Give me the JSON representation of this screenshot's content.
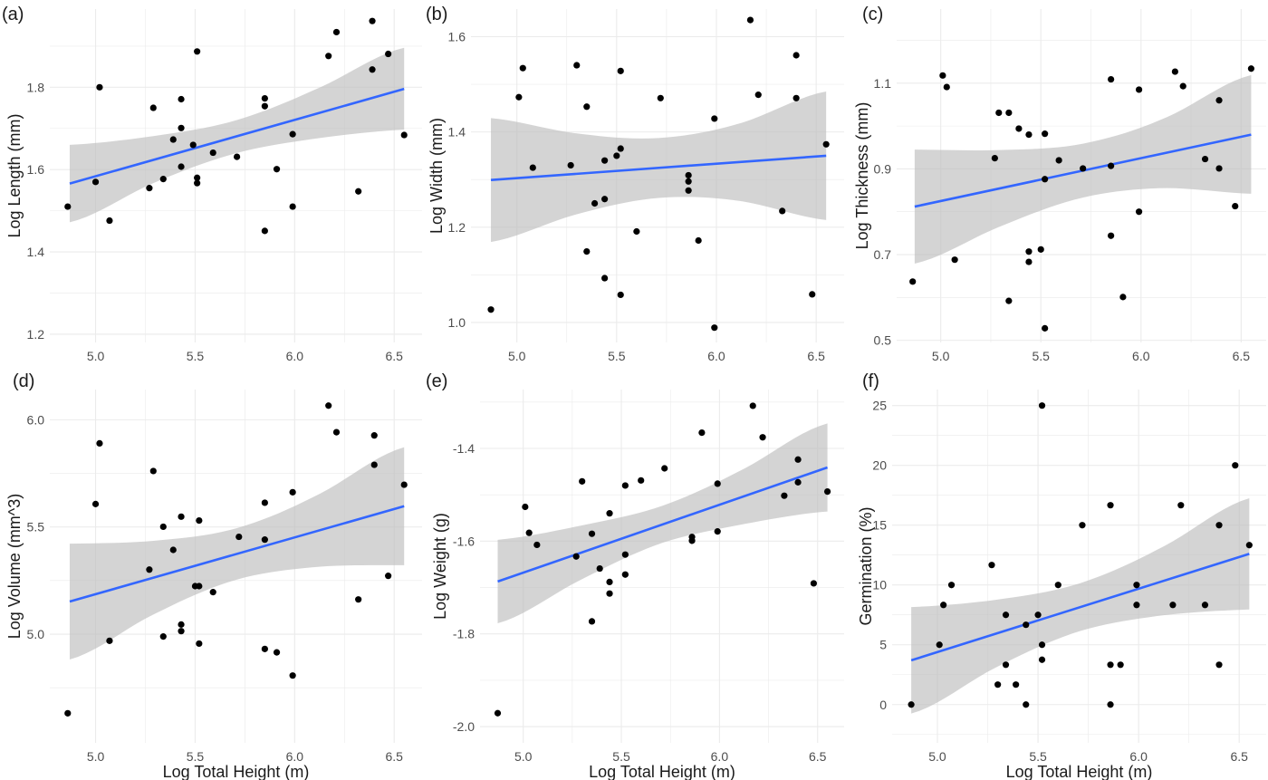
{
  "colors": {
    "points": "#000000",
    "fit_line": "#3366FF",
    "ci_band": "#d3d3d3",
    "grid": "#ebebeb"
  },
  "x_axis_title": "Log Total Height (m)",
  "chart_data": [
    {
      "type": "scatter",
      "panel_label": "(a)",
      "ylabel": "Log Length (mm)",
      "xlabel": "",
      "xticks": [
        "5.0",
        "5.5",
        "6.0",
        "6.5"
      ],
      "yticks": [
        "1.2",
        "1.4",
        "1.6",
        "1.8"
      ],
      "xlim": [
        4.77,
        6.64
      ],
      "ylim": [
        1.18,
        1.99
      ],
      "grid": true,
      "x": [
        4.86,
        5.0,
        5.02,
        5.07,
        5.27,
        5.29,
        5.34,
        5.39,
        5.43,
        5.43,
        5.43,
        5.49,
        5.51,
        5.51,
        5.51,
        5.59,
        5.71,
        5.85,
        5.85,
        5.85,
        5.91,
        5.99,
        5.99,
        6.17,
        6.21,
        6.32,
        6.39,
        6.39,
        6.47,
        6.55
      ],
      "y": [
        1.51,
        1.57,
        1.8,
        1.476,
        1.555,
        1.75,
        1.577,
        1.673,
        1.771,
        1.701,
        1.607,
        1.66,
        1.887,
        1.58,
        1.567,
        1.641,
        1.631,
        1.773,
        1.754,
        1.451,
        1.601,
        1.686,
        1.51,
        1.876,
        1.934,
        1.547,
        1.961,
        1.843,
        1.881,
        1.684
      ],
      "fit": {
        "x": [
          4.87,
          6.55
        ],
        "y": [
          1.566,
          1.796
        ]
      },
      "ci": {
        "x": [
          4.87,
          5.3,
          5.7,
          6.1,
          6.55
        ],
        "lower": [
          1.472,
          1.569,
          1.639,
          1.675,
          1.697
        ],
        "upper": [
          1.66,
          1.682,
          1.719,
          1.794,
          1.896
        ]
      }
    },
    {
      "type": "scatter",
      "panel_label": "(b)",
      "ylabel": "Log Width (mm)",
      "xlabel": "",
      "xticks": [
        "5.0",
        "5.5",
        "6.0",
        "6.5"
      ],
      "yticks": [
        "1.0",
        "1.2",
        "1.4",
        "1.6"
      ],
      "xlim": [
        4.77,
        6.64
      ],
      "ylim": [
        0.958,
        1.658
      ],
      "grid": true,
      "x": [
        4.87,
        5.01,
        5.03,
        5.08,
        5.27,
        5.3,
        5.35,
        5.35,
        5.39,
        5.44,
        5.44,
        5.44,
        5.5,
        5.52,
        5.52,
        5.52,
        5.6,
        5.72,
        5.86,
        5.86,
        5.86,
        5.91,
        5.99,
        5.99,
        6.17,
        6.21,
        6.33,
        6.4,
        6.4,
        6.48,
        6.55
      ],
      "y": [
        1.027,
        1.473,
        1.534,
        1.325,
        1.33,
        1.54,
        1.453,
        1.149,
        1.25,
        1.34,
        1.259,
        1.093,
        1.35,
        1.528,
        1.365,
        1.058,
        1.191,
        1.471,
        1.309,
        1.296,
        1.277,
        1.172,
        1.428,
        0.989,
        1.635,
        1.478,
        1.234,
        1.561,
        1.471,
        1.059,
        1.374
      ],
      "fit": {
        "x": [
          4.87,
          6.55
        ],
        "y": [
          1.299,
          1.35
        ]
      },
      "ci": {
        "x": [
          4.87,
          5.3,
          5.7,
          6.1,
          6.55
        ],
        "lower": [
          1.169,
          1.227,
          1.261,
          1.256,
          1.215
        ],
        "upper": [
          1.429,
          1.397,
          1.387,
          1.416,
          1.485
        ]
      }
    },
    {
      "type": "scatter",
      "panel_label": "(c)",
      "ylabel": "Log Thickness (mm)",
      "xlabel": "",
      "xticks": [
        "5.0",
        "5.5",
        "6.0",
        "6.5"
      ],
      "yticks": [
        "0.5",
        "0.7",
        "0.9",
        "1.1"
      ],
      "xlim": [
        4.78,
        6.625
      ],
      "ylim": [
        0.495,
        1.273
      ],
      "grid": true,
      "x": [
        4.86,
        5.01,
        5.03,
        5.07,
        5.27,
        5.29,
        5.34,
        5.34,
        5.39,
        5.44,
        5.44,
        5.44,
        5.5,
        5.52,
        5.52,
        5.52,
        5.59,
        5.71,
        5.85,
        5.85,
        5.85,
        5.91,
        5.99,
        5.99,
        6.17,
        6.21,
        6.32,
        6.39,
        6.39,
        6.47,
        6.55
      ],
      "y": [
        0.637,
        1.118,
        1.091,
        0.688,
        0.925,
        1.031,
        1.031,
        0.592,
        0.994,
        0.98,
        0.707,
        0.683,
        0.712,
        0.982,
        0.876,
        0.528,
        0.92,
        0.901,
        1.109,
        0.907,
        0.744,
        0.601,
        1.085,
        0.8,
        1.127,
        1.093,
        0.923,
        1.06,
        0.901,
        0.813,
        1.134
      ],
      "fit": {
        "x": [
          4.87,
          6.55
        ],
        "y": [
          0.812,
          0.98
        ]
      },
      "ci": {
        "x": [
          4.87,
          5.3,
          5.7,
          6.1,
          6.55
        ],
        "lower": [
          0.679,
          0.766,
          0.832,
          0.855,
          0.842
        ],
        "upper": [
          0.945,
          0.944,
          0.958,
          1.015,
          1.119
        ]
      }
    },
    {
      "type": "scatter",
      "panel_label": "(d)",
      "ylabel": "Log Volume (mm^3)",
      "xlabel": "Log Total Height (m)",
      "xticks": [
        "5.0",
        "5.5",
        "6.0",
        "6.5"
      ],
      "yticks": [
        "5.0",
        "5.5",
        "6.0"
      ],
      "xlim": [
        4.77,
        6.64
      ],
      "ylim": [
        4.493,
        6.141
      ],
      "grid": true,
      "x": [
        4.86,
        5.0,
        5.02,
        5.07,
        5.27,
        5.29,
        5.34,
        5.34,
        5.39,
        5.43,
        5.43,
        5.43,
        5.5,
        5.52,
        5.52,
        5.52,
        5.59,
        5.72,
        5.85,
        5.85,
        5.85,
        5.91,
        5.99,
        5.99,
        6.17,
        6.21,
        6.32,
        6.4,
        6.4,
        6.47,
        6.55
      ],
      "y": [
        4.631,
        5.607,
        5.89,
        4.969,
        5.301,
        5.761,
        5.501,
        4.989,
        5.393,
        5.548,
        5.045,
        5.014,
        5.224,
        5.53,
        5.224,
        4.956,
        5.196,
        5.454,
        5.613,
        5.441,
        4.931,
        4.915,
        5.662,
        4.807,
        6.066,
        5.942,
        5.162,
        5.927,
        5.79,
        5.272,
        5.697
      ],
      "fit": {
        "x": [
          4.87,
          6.55
        ],
        "y": [
          5.152,
          5.597
        ]
      },
      "ci": {
        "x": [
          4.87,
          5.3,
          5.7,
          6.1,
          6.55
        ],
        "lower": [
          4.882,
          5.096,
          5.252,
          5.313,
          5.322
        ],
        "upper": [
          5.422,
          5.436,
          5.492,
          5.643,
          5.872
        ]
      }
    },
    {
      "type": "scatter",
      "panel_label": "(e)",
      "ylabel": "Log Weight (g)",
      "xlabel": "Log Total Height (m)",
      "xticks": [
        "5.0",
        "5.5",
        "6.0",
        "6.5"
      ],
      "yticks": [
        "-2.0",
        "-1.8",
        "-1.6",
        "-1.4"
      ],
      "xlim": [
        4.78,
        6.635
      ],
      "ylim": [
        -2.035,
        -1.273
      ],
      "grid": true,
      "x": [
        4.87,
        5.01,
        5.03,
        5.07,
        5.27,
        5.3,
        5.35,
        5.35,
        5.39,
        5.44,
        5.44,
        5.44,
        5.52,
        5.52,
        5.52,
        5.6,
        5.72,
        5.86,
        5.86,
        5.91,
        5.99,
        5.99,
        6.17,
        6.22,
        6.33,
        6.4,
        6.4,
        6.48,
        6.55
      ],
      "y": [
        -1.971,
        -1.526,
        -1.582,
        -1.608,
        -1.633,
        -1.471,
        -1.584,
        -1.773,
        -1.659,
        -1.54,
        -1.688,
        -1.713,
        -1.48,
        -1.629,
        -1.672,
        -1.469,
        -1.443,
        -1.591,
        -1.599,
        -1.366,
        -1.476,
        -1.579,
        -1.308,
        -1.376,
        -1.502,
        -1.424,
        -1.473,
        -1.691,
        -1.493
      ],
      "fit": {
        "x": [
          4.87,
          6.55
        ],
        "y": [
          -1.687,
          -1.441
        ]
      },
      "ci": {
        "x": [
          4.87,
          5.3,
          5.7,
          6.1,
          6.55
        ],
        "lower": [
          -1.777,
          -1.682,
          -1.605,
          -1.565,
          -1.536
        ],
        "upper": [
          -1.597,
          -1.566,
          -1.525,
          -1.449,
          -1.346
        ]
      }
    },
    {
      "type": "scatter",
      "panel_label": "(f)",
      "ylabel": "Germination (%)",
      "xlabel": "Log Total Height (m)",
      "xticks": [
        "5.0",
        "5.5",
        "6.0",
        "6.5"
      ],
      "yticks": [
        "0",
        "5",
        "10",
        "15",
        "20",
        "25"
      ],
      "xlim": [
        4.775,
        6.634
      ],
      "ylim": [
        -3.2,
        26.34
      ],
      "grid": true,
      "x": [
        4.87,
        5.01,
        5.03,
        5.07,
        5.27,
        5.3,
        5.34,
        5.34,
        5.39,
        5.44,
        5.44,
        5.5,
        5.52,
        5.52,
        5.52,
        5.6,
        5.72,
        5.86,
        5.86,
        5.86,
        5.91,
        5.99,
        5.99,
        6.17,
        6.21,
        6.33,
        6.4,
        6.4,
        6.48,
        6.55
      ],
      "y": [
        0,
        5,
        8.33,
        10,
        11.67,
        1.67,
        7.5,
        3.33,
        1.67,
        6.67,
        0,
        7.5,
        25,
        5,
        3.75,
        10,
        15,
        16.67,
        3.33,
        0,
        3.33,
        10,
        8.33,
        8.33,
        16.67,
        8.33,
        15,
        3.33,
        20,
        13.33
      ],
      "fit": {
        "x": [
          4.87,
          6.55
        ],
        "y": [
          3.7,
          12.6
        ]
      },
      "ci": {
        "x": [
          4.87,
          5.3,
          5.7,
          6.1,
          6.55
        ],
        "lower": [
          -0.75,
          3.18,
          6.1,
          7.42,
          7.95
        ],
        "upper": [
          8.15,
          8.78,
          10.1,
          13.02,
          17.25
        ]
      }
    }
  ]
}
